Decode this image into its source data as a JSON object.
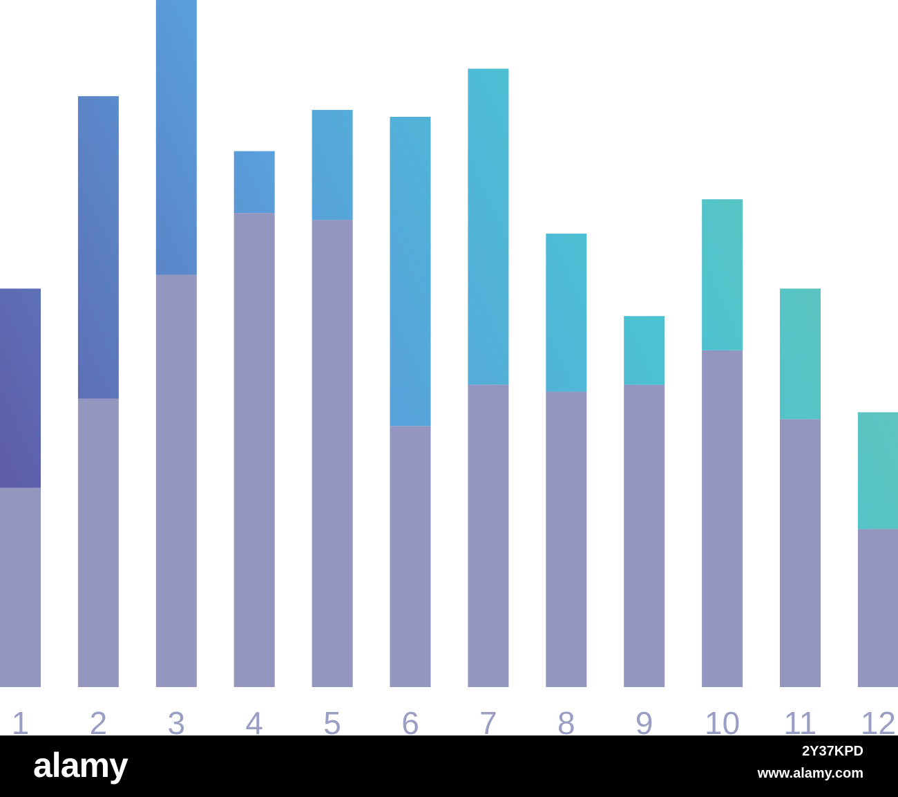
{
  "chart_data": {
    "type": "bar",
    "stacked": true,
    "categories": [
      "1",
      "2",
      "3",
      "4",
      "5",
      "6",
      "7",
      "8",
      "9",
      "10",
      "11",
      "12"
    ],
    "series": [
      {
        "values": [
          29,
          42,
          60,
          69,
          68,
          38,
          44,
          43,
          44,
          49,
          39,
          23
        ]
      },
      {
        "values": [
          29,
          44,
          40,
          9,
          16,
          45,
          46,
          23,
          10,
          22,
          19,
          17
        ]
      }
    ],
    "ylim": [
      0,
      100
    ],
    "grid": false,
    "legend": "none",
    "colors": {
      "base": "#9396BE",
      "top_gradient": [
        "#5F5BA8",
        "#59AEE0",
        "#4BC3D3",
        "#68C4B3"
      ],
      "tick_label": "#9A9DC4"
    }
  },
  "watermark": {
    "logo": "alamy",
    "image_id": "2Y37KPD",
    "url": "www.alamy.com"
  }
}
